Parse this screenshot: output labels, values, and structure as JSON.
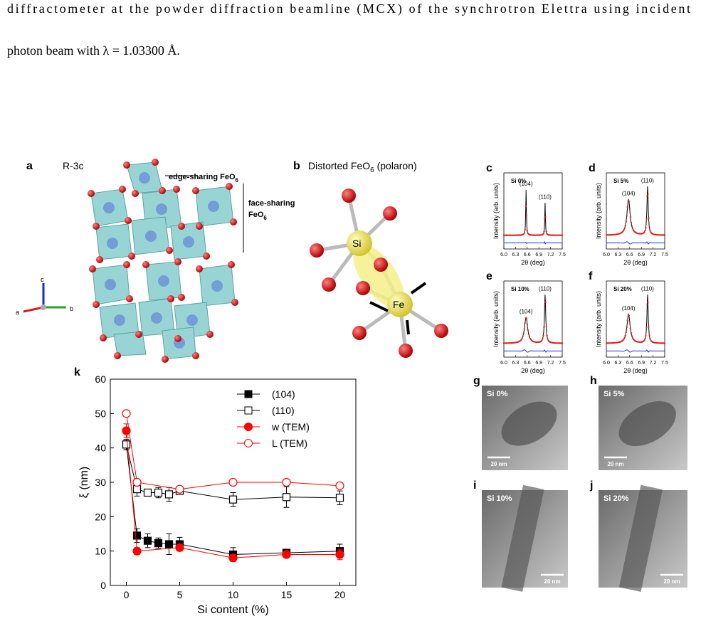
{
  "text": {
    "lines": [
      "diffractometer at the powder diffraction beamline (MCX) of the synchrotron Elettra using incident",
      "photon beam with λ = 1.03300 Å."
    ]
  },
  "panel_a": {
    "label": "a",
    "title": "R-3c",
    "edge": "edge-sharing FeO",
    "edge_sub": "6",
    "face": "face-sharing",
    "face2": "FeO",
    "face_sub": "6",
    "axis_a": "a",
    "axis_b": "b",
    "axis_c": "c"
  },
  "panel_b": {
    "label": "b",
    "title": "Distorted FeO",
    "title_sub": "6",
    "title_rest": " (polaron)",
    "si": "Si",
    "fe": "Fe"
  },
  "xrd": {
    "ylabel": "Intensity (arb. units)",
    "xlabel": "2θ (deg)",
    "xlim": [
      6.0,
      7.5
    ],
    "xticks": [
      {
        "value": 6.0,
        "label": "6.0"
      },
      6.3,
      6.6,
      6.9,
      7.2,
      7.5
    ],
    "panels": [
      {
        "label": "c",
        "sample": "Si 0%",
        "peaks": [
          {
            "name": "(104)",
            "x": 6.57,
            "height": 0.7,
            "fwhm": 0.02
          },
          {
            "name": "(110)",
            "x": 7.06,
            "height": 0.5,
            "fwhm": 0.02
          }
        ]
      },
      {
        "label": "d",
        "sample": "Si 5%",
        "peaks": [
          {
            "name": "(104)",
            "x": 6.57,
            "height": 0.55,
            "fwhm": 0.1
          },
          {
            "name": "(110)",
            "x": 7.06,
            "height": 0.75,
            "fwhm": 0.04
          }
        ]
      },
      {
        "label": "e",
        "sample": "Si 10%",
        "peaks": [
          {
            "name": "(104)",
            "x": 6.57,
            "height": 0.4,
            "fwhm": 0.1
          },
          {
            "name": "(110)",
            "x": 7.06,
            "height": 0.75,
            "fwhm": 0.04
          }
        ]
      },
      {
        "label": "f",
        "sample": "Si 20%",
        "peaks": [
          {
            "name": "(104)",
            "x": 6.57,
            "height": 0.45,
            "fwhm": 0.1
          },
          {
            "name": "(110)",
            "x": 7.06,
            "height": 0.75,
            "fwhm": 0.04
          }
        ]
      }
    ]
  },
  "tem": [
    {
      "label": "g",
      "sample": "Si 0%",
      "scale": "20 nm"
    },
    {
      "label": "h",
      "sample": "Si 5%",
      "scale": "20 nm"
    },
    {
      "label": "i",
      "sample": "Si 10%",
      "scale": "20 nm"
    },
    {
      "label": "j",
      "sample": "Si 20%",
      "scale": "20 nm"
    }
  ],
  "chart_data": {
    "type": "line",
    "label": "k",
    "xlabel": "Si content (%)",
    "ylabel": "ξ (nm)",
    "xlim": [
      -1.5,
      21.5
    ],
    "xticks": [
      0,
      5,
      10,
      15,
      20
    ],
    "ylim": [
      0,
      60
    ],
    "yticks": [
      0,
      10,
      20,
      30,
      40,
      50,
      60
    ],
    "series": [
      {
        "name": "(104)",
        "color": "#000000",
        "marker": "square",
        "filled": true,
        "x": [
          0,
          1,
          2,
          3,
          4,
          5,
          10,
          15,
          20
        ],
        "values": [
          41,
          14.5,
          13,
          12.3,
          12,
          12,
          9,
          9.5,
          10
        ],
        "errors": [
          1.5,
          2,
          2,
          1.5,
          3,
          2,
          2,
          1,
          2
        ]
      },
      {
        "name": "(110)",
        "color": "#000000",
        "marker": "square",
        "filled": false,
        "x": [
          0,
          1,
          2,
          3,
          4,
          5,
          10,
          15,
          20
        ],
        "values": [
          41,
          28,
          27,
          27,
          26.5,
          27.5,
          25,
          25.7,
          25.5
        ],
        "errors": [
          1.5,
          2,
          1,
          1.5,
          2,
          1,
          2,
          3,
          2
        ]
      },
      {
        "name": "w (TEM)",
        "color": "#ff0000",
        "marker": "circle",
        "filled": true,
        "x": [
          0,
          1,
          5,
          10,
          15,
          20
        ],
        "values": [
          45,
          10,
          11,
          8,
          9,
          9
        ],
        "errors": [
          2,
          1,
          1,
          1,
          1,
          1.5
        ]
      },
      {
        "name": "L (TEM)",
        "color": "#ff0000",
        "marker": "circle",
        "filled": false,
        "x": [
          0,
          1,
          5,
          10,
          15,
          20
        ],
        "values": [
          50,
          30,
          28,
          30,
          30,
          29
        ],
        "errors": [
          null,
          null,
          null,
          null,
          null,
          null
        ]
      }
    ]
  }
}
